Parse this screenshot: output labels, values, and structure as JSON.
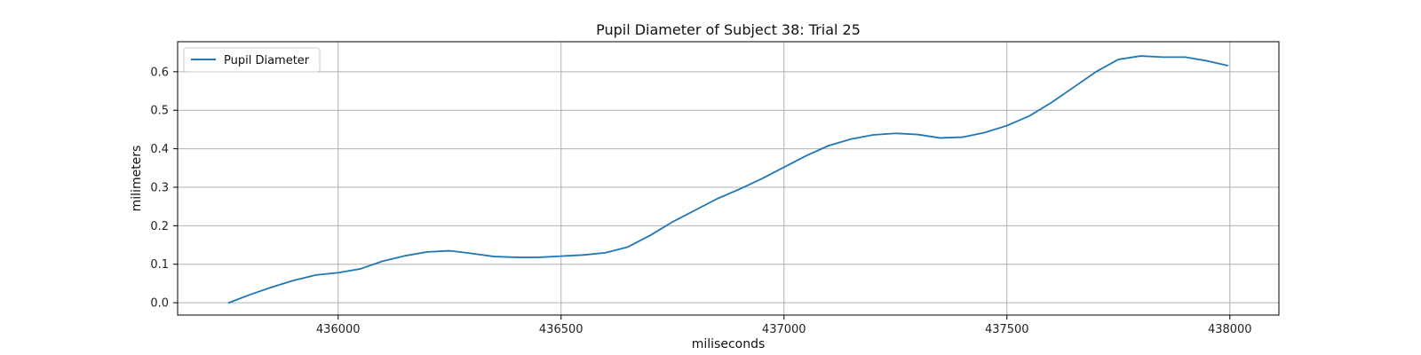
{
  "chart_data": {
    "type": "line",
    "title": "Pupil Diameter of Subject 38: Trial 25",
    "xlabel": "miliseconds",
    "ylabel": "milimeters",
    "xlim": [
      435640,
      438110
    ],
    "ylim": [
      -0.032,
      0.678
    ],
    "xticks": [
      436000,
      436500,
      437000,
      437500,
      438000
    ],
    "yticks": [
      0.0,
      0.1,
      0.2,
      0.3,
      0.4,
      0.5,
      0.6
    ],
    "ytick_labels": [
      "0.0",
      "0.1",
      "0.2",
      "0.3",
      "0.4",
      "0.5",
      "0.6"
    ],
    "grid": true,
    "legend_position": "top-left",
    "series": [
      {
        "name": "Pupil Diameter",
        "color": "#1f77b4",
        "x": [
          435755,
          435800,
          435850,
          435900,
          435950,
          436000,
          436050,
          436100,
          436150,
          436200,
          436250,
          436300,
          436350,
          436400,
          436450,
          436500,
          436550,
          436600,
          436650,
          436700,
          436750,
          436800,
          436850,
          436900,
          436950,
          437000,
          437050,
          437100,
          437150,
          437200,
          437250,
          437300,
          437350,
          437400,
          437450,
          437500,
          437550,
          437600,
          437650,
          437700,
          437750,
          437800,
          437850,
          437900,
          437950,
          437995
        ],
        "y": [
          0.0,
          0.02,
          0.04,
          0.058,
          0.072,
          0.078,
          0.088,
          0.108,
          0.122,
          0.132,
          0.135,
          0.128,
          0.12,
          0.118,
          0.118,
          0.121,
          0.124,
          0.13,
          0.145,
          0.175,
          0.21,
          0.24,
          0.27,
          0.295,
          0.322,
          0.352,
          0.382,
          0.408,
          0.425,
          0.436,
          0.44,
          0.437,
          0.428,
          0.43,
          0.442,
          0.46,
          0.485,
          0.52,
          0.56,
          0.6,
          0.632,
          0.641,
          0.638,
          0.638,
          0.628,
          0.616
        ]
      }
    ]
  }
}
